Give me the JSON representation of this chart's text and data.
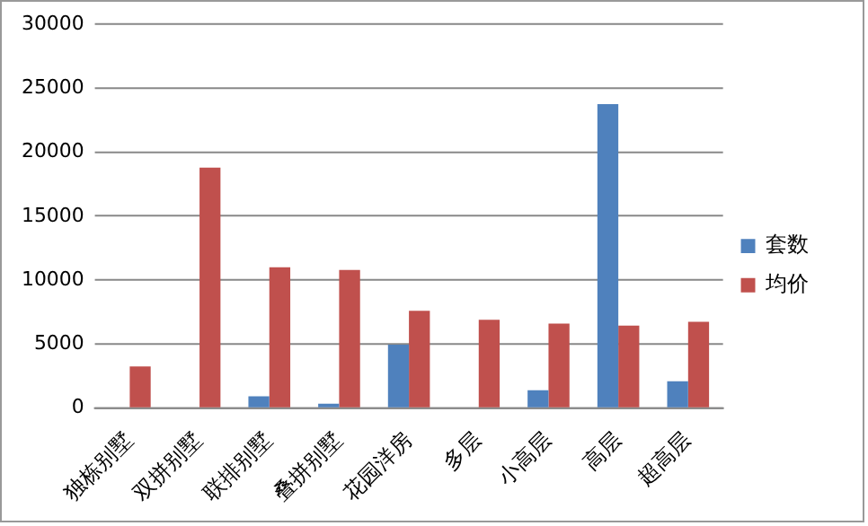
{
  "chart_data": {
    "type": "bar",
    "categories": [
      "独栋别墅",
      "双拼别墅",
      "联排别墅",
      "叠拼别墅",
      "花园洋房",
      "多层",
      "小高层",
      "高层",
      "超高层"
    ],
    "series": [
      {
        "name": "套数",
        "color": "#4f81bd",
        "values": [
          0,
          0,
          920,
          340,
          4950,
          0,
          1400,
          23750,
          2100
        ]
      },
      {
        "name": "均价",
        "color": "#c0504d",
        "values": [
          3250,
          18800,
          11000,
          10800,
          7600,
          6900,
          6600,
          6450,
          6750
        ]
      }
    ],
    "ylim": [
      0,
      30000
    ],
    "yticks": [
      0,
      5000,
      10000,
      15000,
      20000,
      25000,
      30000
    ],
    "grid": "y",
    "legend": "right"
  }
}
